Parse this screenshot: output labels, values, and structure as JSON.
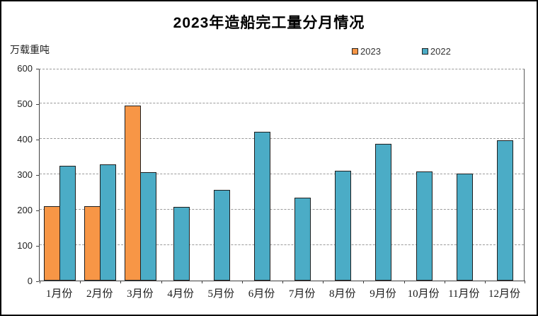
{
  "title": "2023年造船完工量分月情况",
  "unit_label": "万载重吨",
  "legend": [
    {
      "label": "2023",
      "color": "#F79646"
    },
    {
      "label": "2022",
      "color": "#4BACC6"
    }
  ],
  "chart_data": {
    "type": "bar",
    "title": "2023年造船完工量分月情况",
    "ylabel": "万载重吨",
    "categories": [
      "1月份",
      "2月份",
      "3月份",
      "4月份",
      "5月份",
      "6月份",
      "7月份",
      "8月份",
      "9月份",
      "10月份",
      "11月份",
      "12月份"
    ],
    "series": [
      {
        "name": "2023",
        "color": "#F79646",
        "values": [
          211,
          210,
          494,
          null,
          null,
          null,
          null,
          null,
          null,
          null,
          null,
          null
        ]
      },
      {
        "name": "2022",
        "color": "#4BACC6",
        "values": [
          325,
          328,
          307,
          209,
          256,
          421,
          235,
          310,
          386,
          308,
          303,
          396
        ]
      }
    ],
    "ylim": [
      0,
      600
    ],
    "ytick_step": 100,
    "grid": "horizontal-dashed",
    "legend_position": "top-inside-right",
    "bar_border_color": "#1f1f1f"
  }
}
